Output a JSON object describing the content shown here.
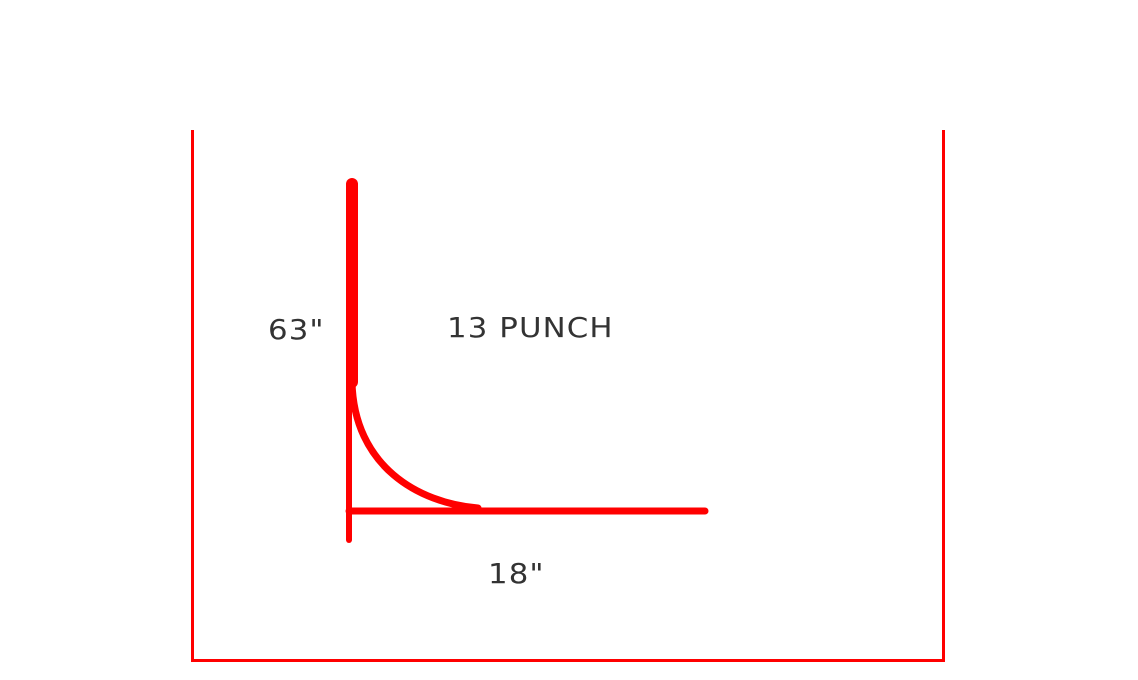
{
  "diagram": {
    "vertical_dimension": "63\"",
    "horizontal_dimension": "18\"",
    "title": "13 PUNCH"
  },
  "colors": {
    "stroke": "#ff0000",
    "text": "#333333",
    "background": "#ffffff"
  }
}
